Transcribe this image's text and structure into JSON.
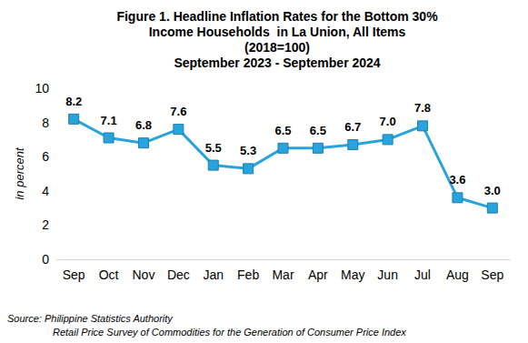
{
  "chart_data": {
    "type": "line",
    "title": "Figure 1. Headline Inflation Rates for the Bottom 30%\nIncome Households  in La Union, All Items\n(2018=100)\nSeptember 2023 - September 2024",
    "y_label": "in percent",
    "categories": [
      "Sep",
      "Oct",
      "Nov",
      "Dec",
      "Jan",
      "Feb",
      "Mar",
      "Apr",
      "May",
      "Jun",
      "Jul",
      "Aug",
      "Sep"
    ],
    "values": [
      8.2,
      7.1,
      6.8,
      7.6,
      5.5,
      5.3,
      6.5,
      6.5,
      6.7,
      7.0,
      7.8,
      3.6,
      3.0
    ],
    "value_labels": [
      "8.2",
      "7.1",
      "6.8",
      "7.6",
      "5.5",
      "5.3",
      "6.5",
      "6.5",
      "6.7",
      "7.0",
      "7.8",
      "3.6",
      "3.0"
    ],
    "color": "#29a3dc",
    "marker": "rect",
    "line_style": "solid",
    "data_labels": true,
    "grid": false,
    "ylim": [
      0,
      10
    ],
    "yticks": [
      0,
      2,
      4,
      6,
      8,
      10
    ],
    "notes": [
      "Source: Philippine Statistics Authority",
      "Retail Price Survey of Commodities for the Generation of Consumer Price Index"
    ]
  }
}
